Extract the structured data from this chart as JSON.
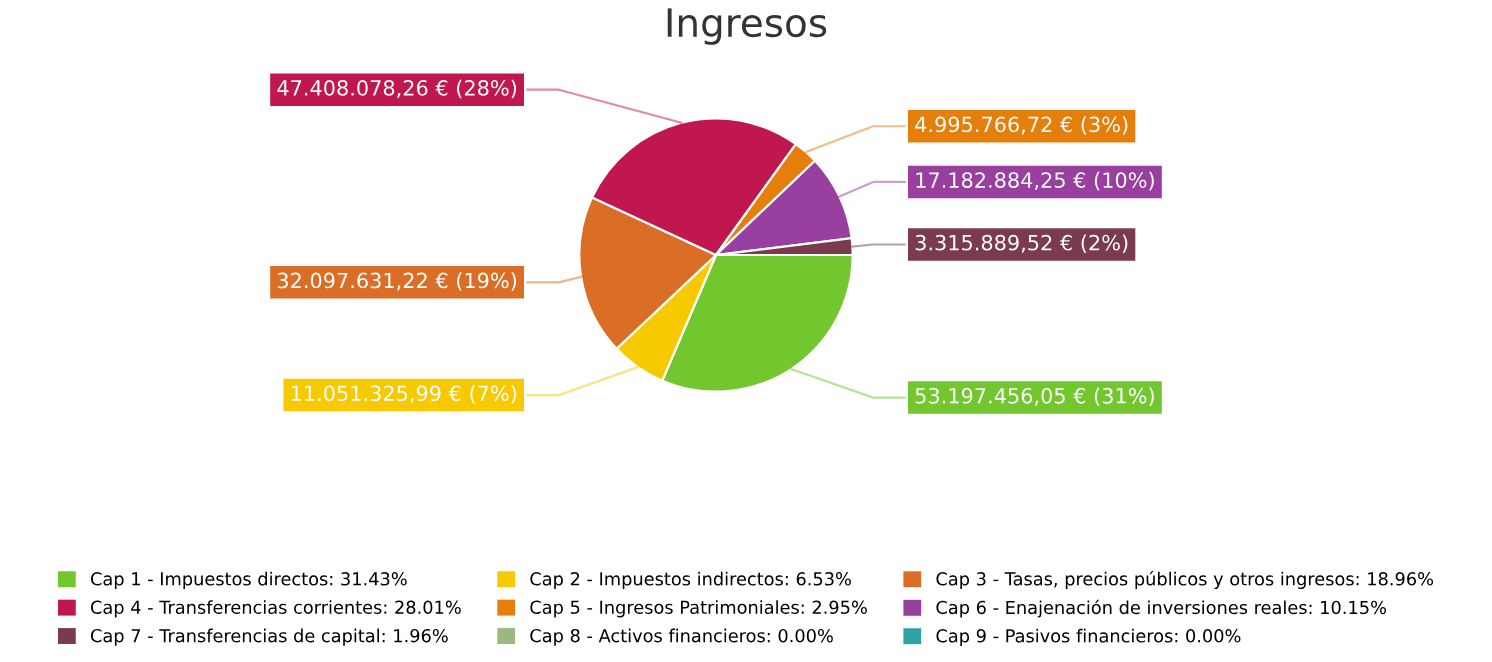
{
  "chart_data": {
    "type": "pie",
    "title": "Ingresos",
    "categories": [
      "Cap 1 - Impuestos directos: 31.43%",
      "Cap 2 - Impuestos indirectos: 6.53%",
      "Cap 3 - Tasas, precios públicos y otros ingresos: 18.96%",
      "Cap 4 - Transferencias corrientes: 28.01%",
      "Cap 5 - Ingresos Patrimoniales: 2.95%",
      "Cap 6 - Enajenación de inversiones reales: 10.15%",
      "Cap 7 - Transferencias de capital: 1.96%",
      "Cap 8 - Activos financieros: 0.00%",
      "Cap 9 - Pasivos financieros: 0.00%"
    ],
    "values": [
      53197456.05,
      11051325.99,
      32097631.22,
      47408078.26,
      4995766.72,
      17182884.25,
      3315889.52,
      0,
      0
    ],
    "value_labels": [
      "53.197.456,05 € (31%)",
      "11.051.325,99 € (7%)",
      "32.097.631,22 € (19%)",
      "47.408.078,26 € (28%)",
      "4.995.766,72 € (3%)",
      "17.182.884,25 € (10%)",
      "3.315.889,52 € (2%)",
      null,
      null
    ],
    "colors": [
      "#72c72f",
      "#f7c900",
      "#db6e27",
      "#c0174f",
      "#e67e0b",
      "#983fa0",
      "#7b3b4f",
      "#9cb87f",
      "#2fa3a3"
    ],
    "legend": "bottom"
  }
}
